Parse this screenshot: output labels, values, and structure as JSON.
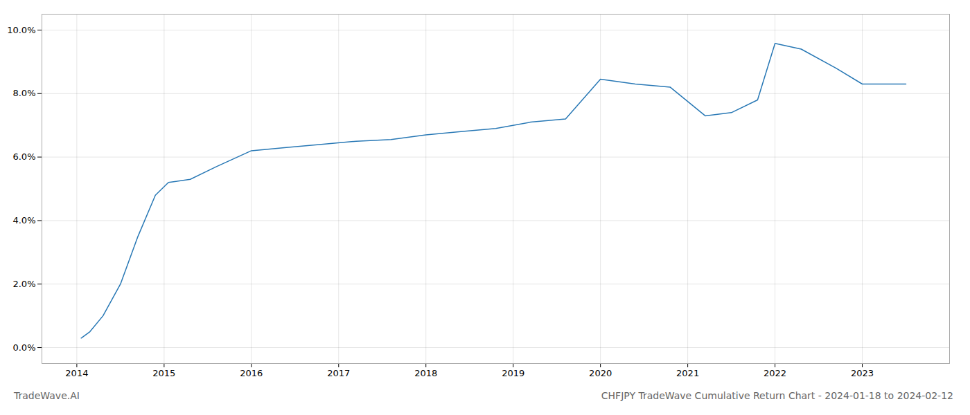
{
  "chart_data": {
    "type": "line",
    "title": "CHFJPY TradeWave Cumulative Return Chart - 2024-01-18 to 2024-02-12",
    "annotations": [
      "TradeWave.AI"
    ],
    "x": [
      2014.05,
      2014.15,
      2014.3,
      2014.5,
      2014.7,
      2014.9,
      2015.05,
      2015.3,
      2015.6,
      2016.0,
      2016.4,
      2016.8,
      2017.2,
      2017.6,
      2018.0,
      2018.4,
      2018.8,
      2019.2,
      2019.6,
      2020.0,
      2020.4,
      2020.8,
      2021.2,
      2021.5,
      2021.8,
      2022.0,
      2022.3,
      2022.7,
      2023.0,
      2023.5
    ],
    "values": [
      0.003,
      0.005,
      0.01,
      0.02,
      0.035,
      0.048,
      0.052,
      0.053,
      0.057,
      0.062,
      0.063,
      0.064,
      0.065,
      0.0655,
      0.067,
      0.068,
      0.069,
      0.071,
      0.072,
      0.0845,
      0.083,
      0.082,
      0.073,
      0.074,
      0.078,
      0.0958,
      0.094,
      0.088,
      0.083,
      0.083
    ],
    "color": "#2878b5",
    "xlim": [
      2013.6,
      2024.0
    ],
    "ylim": [
      -0.005,
      0.105
    ],
    "xticks": [
      2014,
      2015,
      2016,
      2017,
      2018,
      2019,
      2020,
      2021,
      2022,
      2023
    ],
    "yticks": [
      {
        "value": 0.0,
        "label": "0.0%"
      },
      {
        "value": 0.02,
        "label": "2.0%"
      },
      {
        "value": 0.04,
        "label": "4.0%"
      },
      {
        "value": 0.06,
        "label": "6.0%"
      },
      {
        "value": 0.08,
        "label": "8.0%"
      },
      {
        "value": 0.1,
        "label": "10.0%"
      }
    ],
    "grid": true
  }
}
